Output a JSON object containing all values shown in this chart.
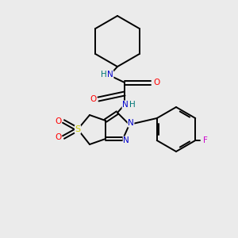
{
  "bg_color": "#ebebeb",
  "bond_color": "#000000",
  "atom_colors": {
    "N": "#0000cc",
    "O": "#ff0000",
    "S": "#cccc00",
    "F": "#cc00cc",
    "H": "#007777",
    "C": "#000000"
  }
}
